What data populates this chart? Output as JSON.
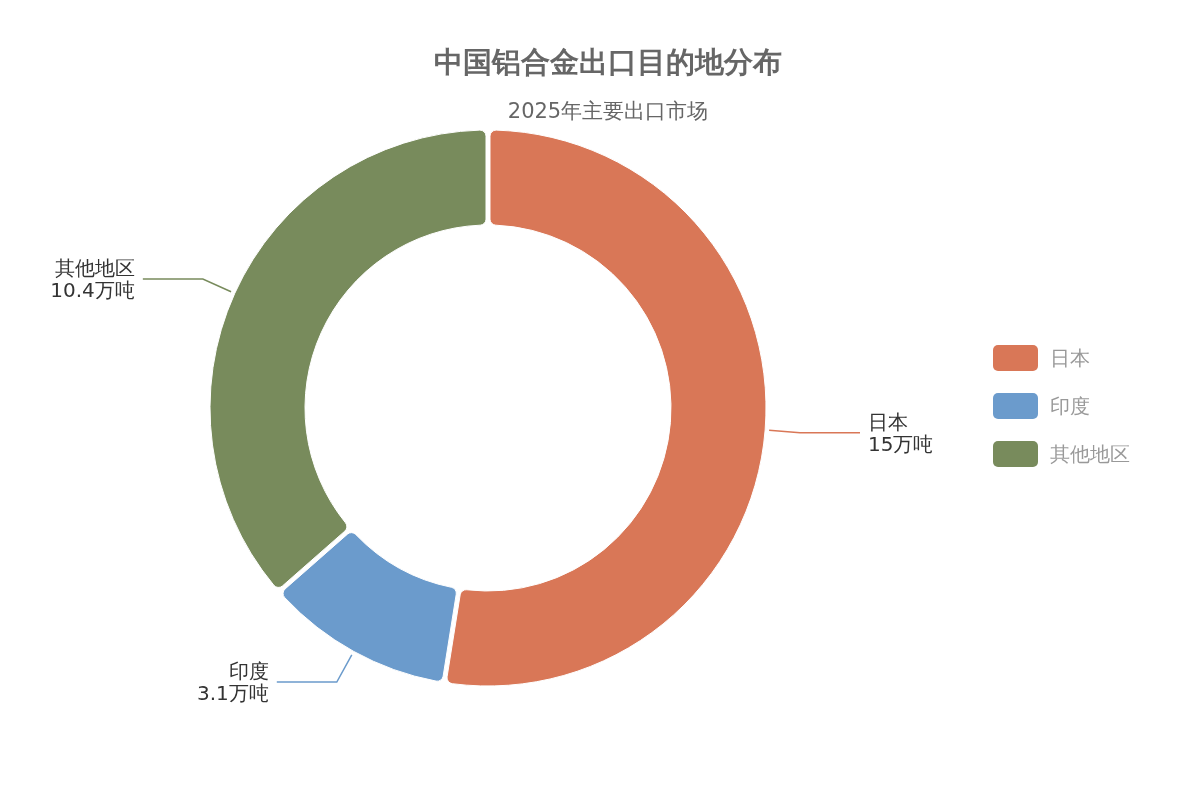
{
  "chart_data": {
    "type": "donut",
    "title": "中国铝合金出口目的地分布",
    "subtitle": "2025年主要出口市场",
    "categories": [
      "日本",
      "印度",
      "其他地区"
    ],
    "values": [
      15,
      3.1,
      10.4
    ],
    "colors": [
      "#d97757",
      "#6b9bcc",
      "#788b5c"
    ],
    "value_labels": [
      "15万吨",
      "3.1万吨",
      "10.4万吨"
    ],
    "legend": "right"
  }
}
